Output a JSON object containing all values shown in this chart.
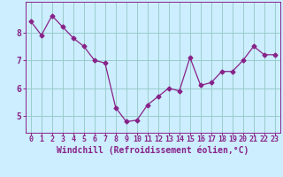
{
  "x": [
    0,
    1,
    2,
    3,
    4,
    5,
    6,
    7,
    8,
    9,
    10,
    11,
    12,
    13,
    14,
    15,
    16,
    17,
    18,
    19,
    20,
    21,
    22,
    23
  ],
  "y": [
    8.4,
    7.9,
    8.6,
    8.2,
    7.8,
    7.5,
    7.0,
    6.9,
    5.3,
    4.8,
    4.85,
    5.4,
    5.7,
    6.0,
    5.9,
    7.1,
    6.1,
    6.2,
    6.6,
    6.6,
    7.0,
    7.5,
    7.2,
    7.2
  ],
  "line_color": "#882288",
  "marker": "D",
  "marker_size": 2.5,
  "bg_color": "#cceeff",
  "grid_color": "#99cccc",
  "xlabel": "Windchill (Refroidissement éolien,°C)",
  "xlabel_fontsize": 7,
  "tick_fontsize": 6,
  "yticks": [
    5,
    6,
    7,
    8
  ],
  "ylim": [
    4.4,
    9.1
  ],
  "xlim": [
    -0.5,
    23.5
  ]
}
